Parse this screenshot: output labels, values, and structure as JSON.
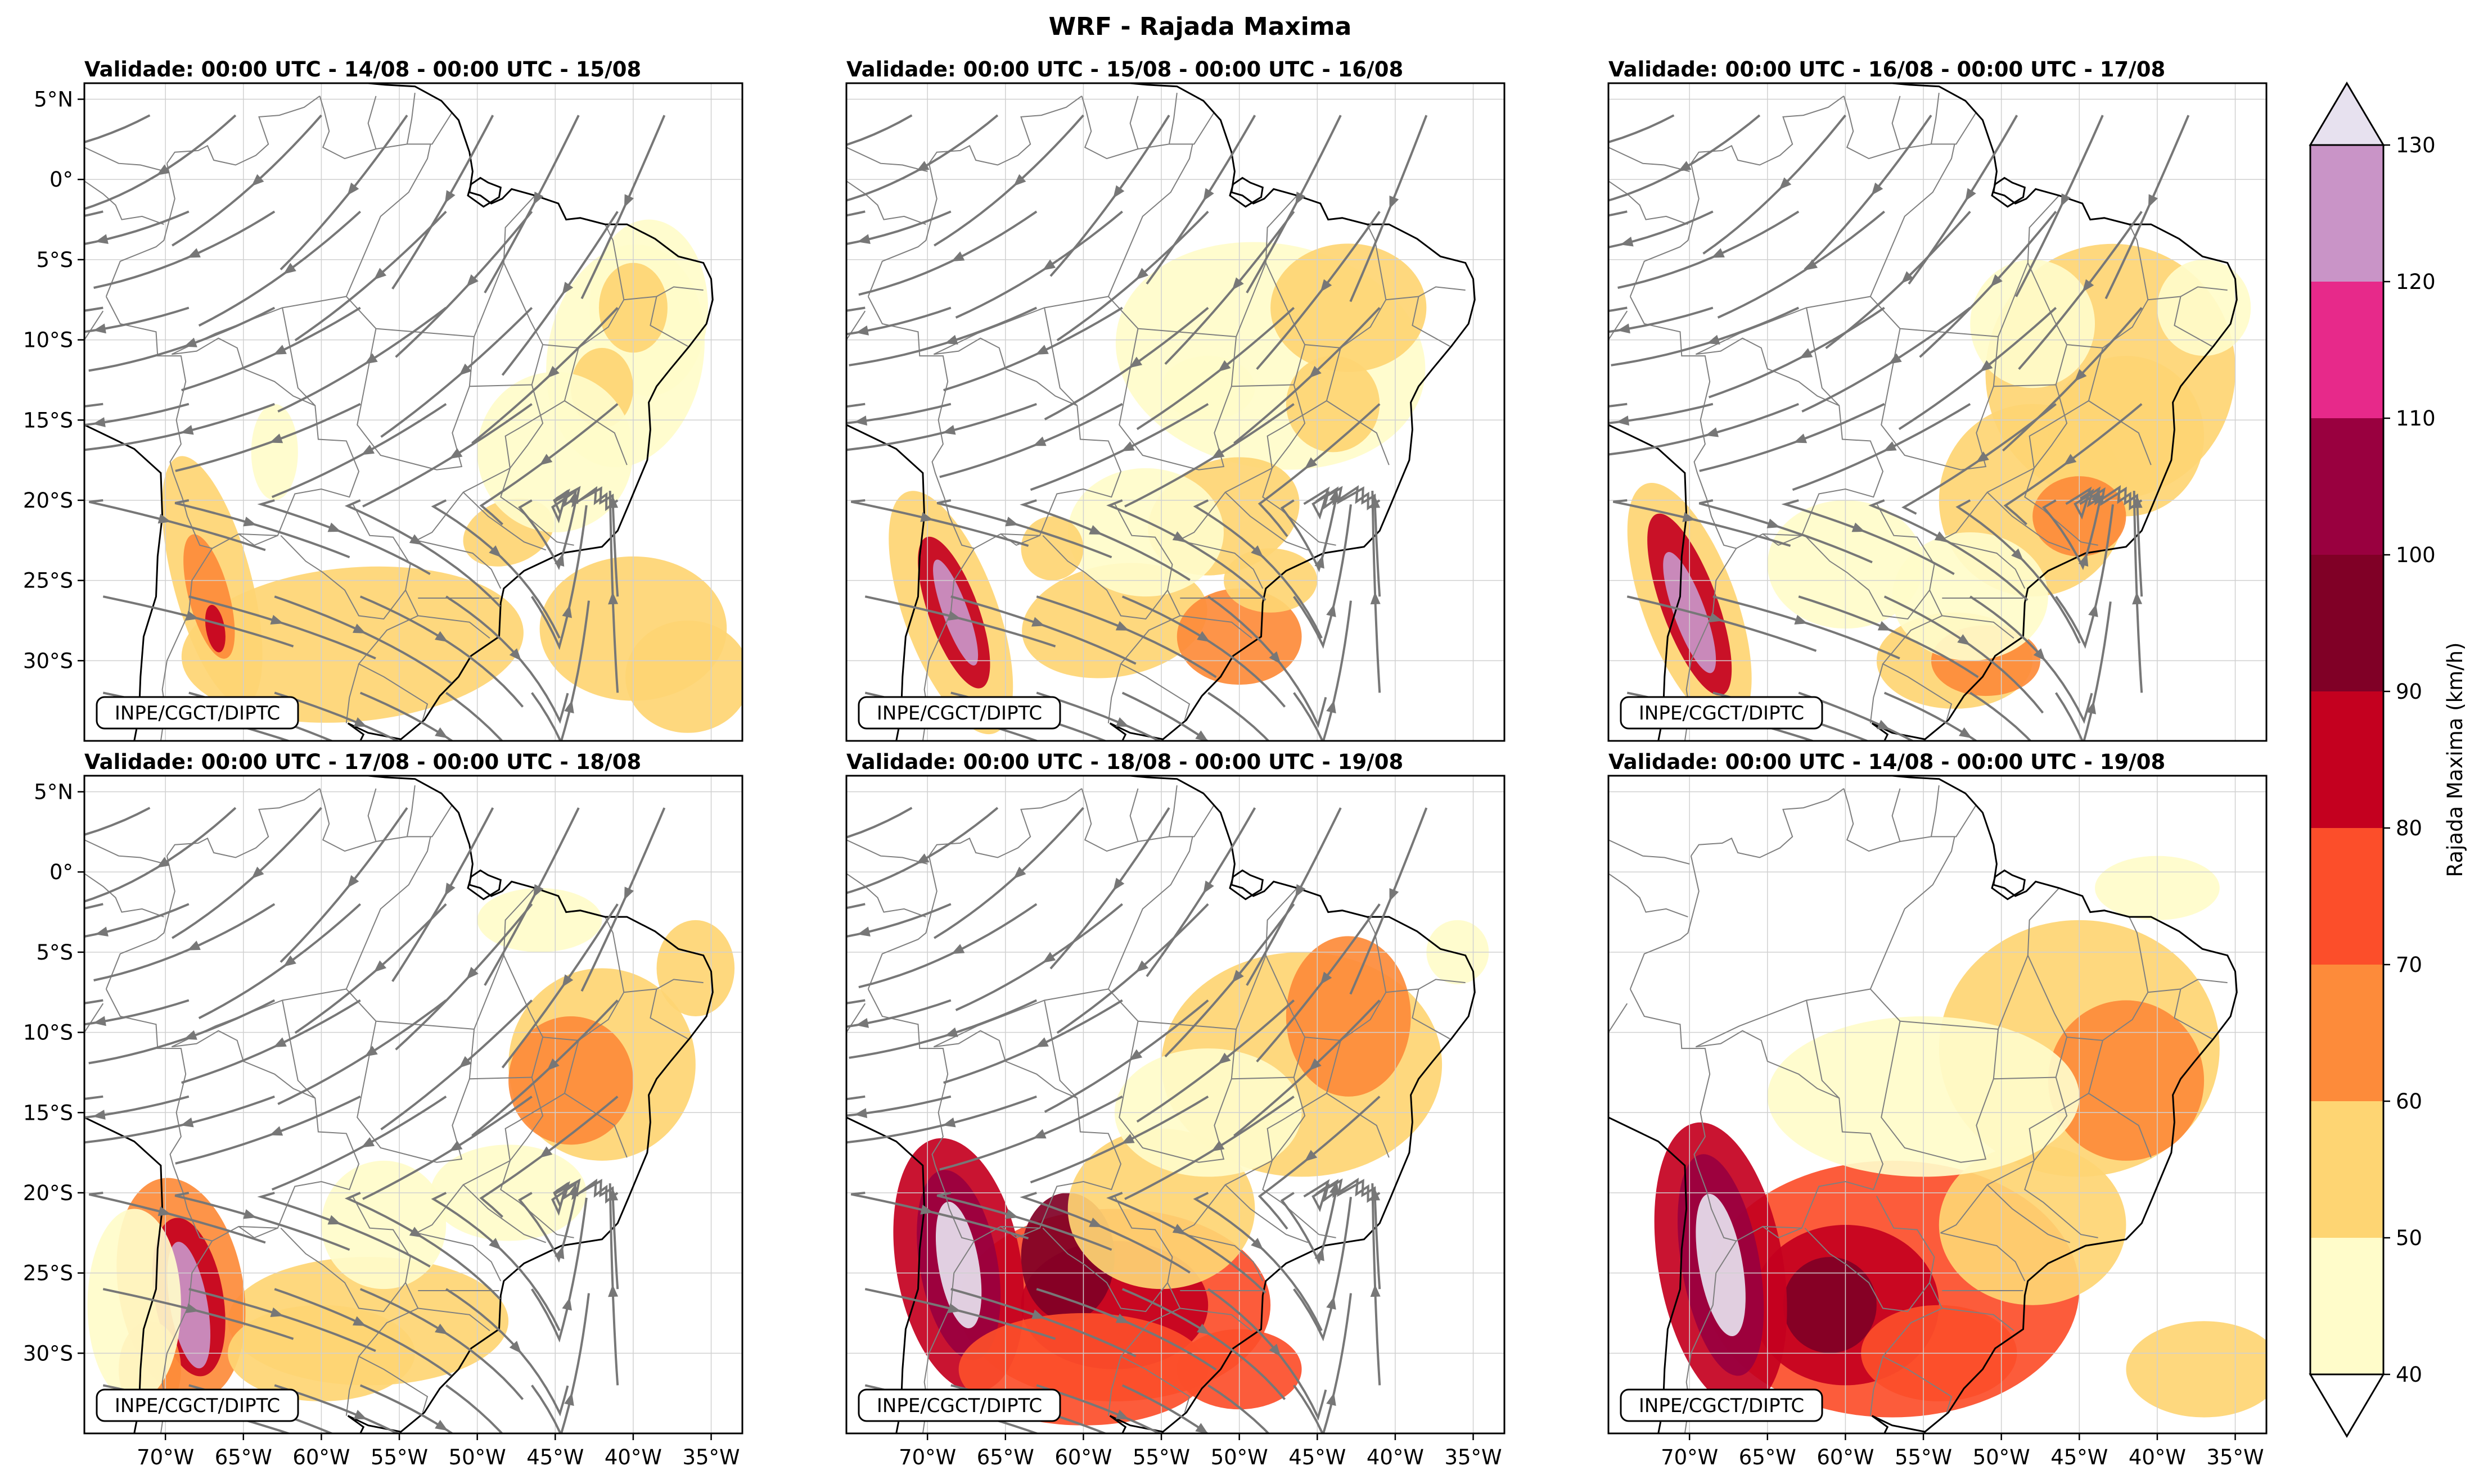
{
  "figure": {
    "title": "WRF - Rajada Maxima"
  },
  "panels": [
    {
      "subtitle": "Validade: 00:00 UTC - 14/08 - 00:00 UTC - 15/08",
      "credit": "INPE/CGCT/DIPTC"
    },
    {
      "subtitle": "Validade: 00:00 UTC - 15/08 - 00:00 UTC - 16/08",
      "credit": "INPE/CGCT/DIPTC"
    },
    {
      "subtitle": "Validade: 00:00 UTC - 16/08 - 00:00 UTC - 17/08",
      "credit": "INPE/CGCT/DIPTC"
    },
    {
      "subtitle": "Validade: 00:00 UTC - 17/08 - 00:00 UTC - 18/08",
      "credit": "INPE/CGCT/DIPTC"
    },
    {
      "subtitle": "Validade: 00:00 UTC - 18/08 - 00:00 UTC - 19/08",
      "credit": "INPE/CGCT/DIPTC"
    },
    {
      "subtitle": "Validade: 00:00 UTC - 14/08 - 00:00 UTC - 19/08",
      "credit": "INPE/CGCT/DIPTC"
    }
  ],
  "axes": {
    "lat_ticks": [
      "5°N",
      "0°",
      "5°S",
      "10°S",
      "15°S",
      "20°S",
      "25°S",
      "30°S"
    ],
    "lon_ticks": [
      "70°W",
      "65°W",
      "60°W",
      "55°W",
      "50°W",
      "45°W",
      "40°W",
      "35°W"
    ]
  },
  "colorbar": {
    "label": "Rajada Maxima (km/h)",
    "ticks": [
      "40",
      "50",
      "60",
      "70",
      "80",
      "90",
      "100",
      "110",
      "120",
      "130"
    ],
    "colors": [
      "#fffcca",
      "#fed573",
      "#fd8b3a",
      "#fc4e2a",
      "#c4001f",
      "#800026",
      "#99003f",
      "#e7298a",
      "#c994c7",
      "#e7e1ef"
    ]
  },
  "palette": {
    "coast": "#000000",
    "borders": "#7f7f7f",
    "streamlines": "#777777",
    "grid": "#d0d0d0"
  }
}
